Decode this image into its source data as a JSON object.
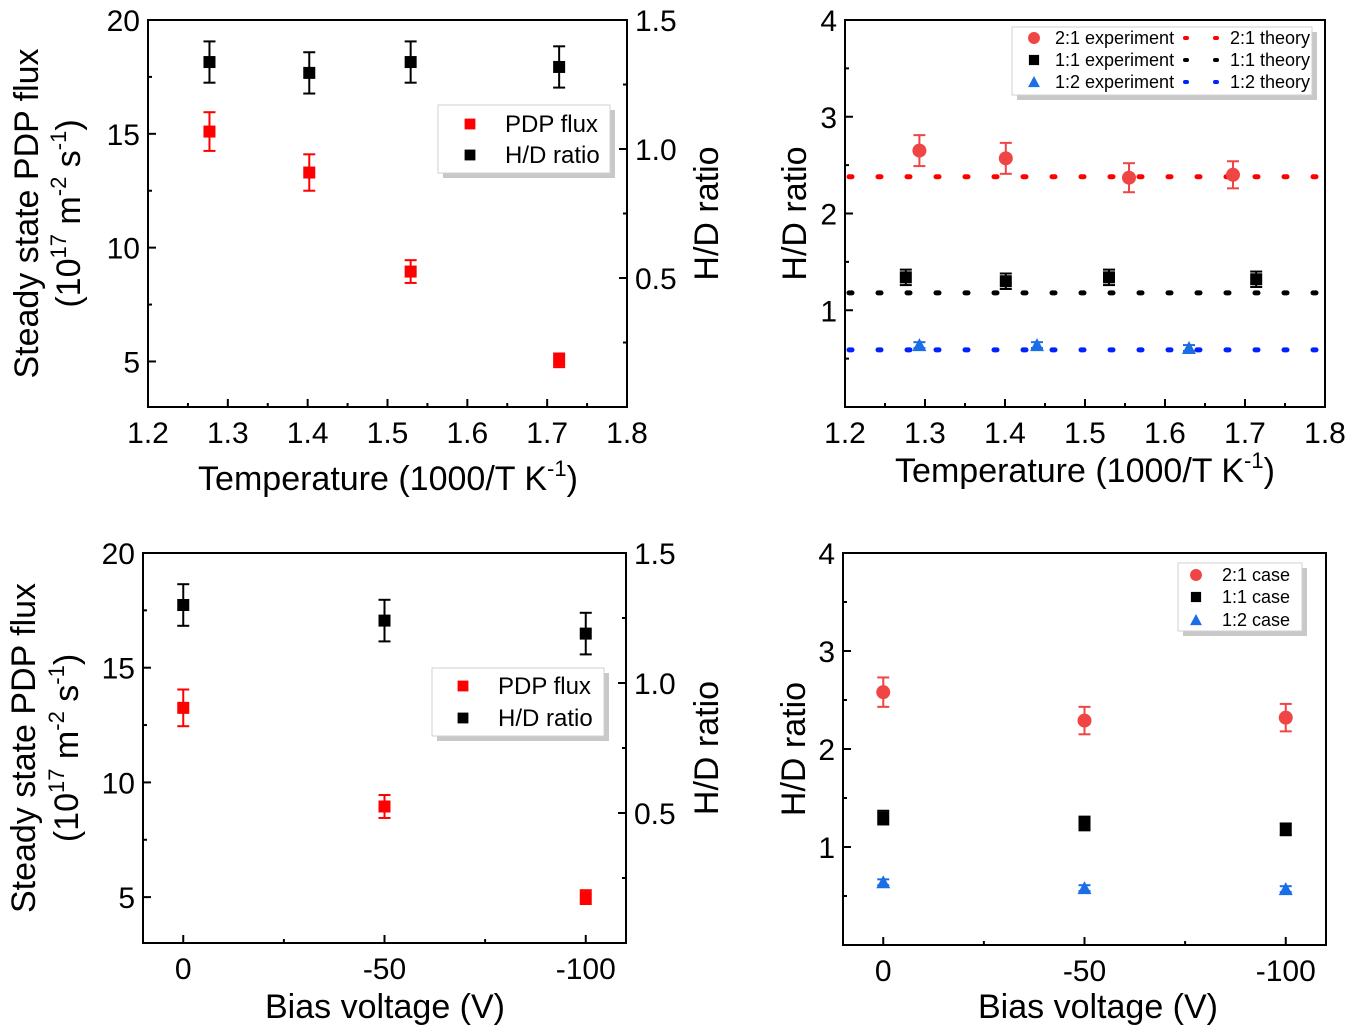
{
  "colors": {
    "red_square": "#ff0000",
    "red_circle": "#f04545",
    "black": "#000000",
    "blue_triangle": "#1a6ee6",
    "red_theory": "#ff0000",
    "black_theory": "#000000",
    "blue_theory": "#0022ff"
  },
  "chart_data": [
    {
      "id": "a",
      "type": "scatter",
      "xlabel": {
        "text": "Temperature (1000/T K",
        "sup": "-1",
        "end": ")"
      },
      "ylabel": {
        "line1": "Steady state PDP flux",
        "line2": [
          "(10",
          "17",
          " m",
          "-2",
          " s",
          "-1",
          ")"
        ]
      },
      "y2label": "H/D ratio",
      "xlim": [
        1.2,
        1.8
      ],
      "ylim": [
        3,
        20
      ],
      "y2lim": [
        0,
        1.5
      ],
      "xticks": [
        1.2,
        1.3,
        1.4,
        1.5,
        1.6,
        1.7,
        1.8
      ],
      "xtick_labels": [
        "1.2",
        "1.3",
        "1.4",
        "1.5",
        "1.6",
        "1.7",
        "1.8"
      ],
      "yticks": [
        5,
        10,
        15,
        20
      ],
      "ytick_labels": [
        "5",
        "10",
        "15",
        "20"
      ],
      "y2ticks": [
        0.5,
        1.0,
        1.5
      ],
      "y2tick_labels": [
        "0.5",
        "1.0",
        "1.5"
      ],
      "legend": {
        "placement": "upper-right",
        "entries": [
          "PDP flux",
          "H/D ratio"
        ]
      },
      "series": [
        {
          "name": "PDP flux",
          "axis": "left",
          "marker": "square",
          "color": "#ff0000",
          "x": [
            1.277,
            1.402,
            1.529,
            1.715
          ],
          "y": [
            15.1,
            13.3,
            8.95,
            5.05
          ],
          "err": [
            0.85,
            0.8,
            0.5,
            0.3
          ]
        },
        {
          "name": "H/D ratio",
          "axis": "right",
          "marker": "square",
          "color": "#000000",
          "x": [
            1.277,
            1.402,
            1.529,
            1.715
          ],
          "y": [
            1.337,
            1.295,
            1.337,
            1.318
          ],
          "err": [
            0.08,
            0.08,
            0.08,
            0.08
          ]
        }
      ]
    },
    {
      "id": "b",
      "type": "scatter",
      "xlabel": {
        "text": "Temperature (1000/T K",
        "sup": "-1",
        "end": ")"
      },
      "ylabel": {
        "line1": "H/D ratio"
      },
      "xlim": [
        1.2,
        1.8
      ],
      "ylim": [
        0,
        4
      ],
      "xticks": [
        1.2,
        1.3,
        1.4,
        1.5,
        1.6,
        1.7,
        1.8
      ],
      "xtick_labels": [
        "1.2",
        "1.3",
        "1.4",
        "1.5",
        "1.6",
        "1.7",
        "1.8"
      ],
      "yticks": [
        1,
        2,
        3,
        4
      ],
      "ytick_labels": [
        "1",
        "2",
        "3",
        "4"
      ],
      "legend": {
        "placement": "top-right",
        "entries": [
          "2:1 experiment",
          "1:1 experiment",
          "1:2 experiment"
        ],
        "theory_entries": [
          "2:1 theory",
          "1:1 theory",
          "1:2 theory"
        ]
      },
      "series": [
        {
          "name": "2:1 experiment",
          "marker": "circle",
          "color": "#f04545",
          "x": [
            1.293,
            1.401,
            1.555,
            1.685
          ],
          "y": [
            2.65,
            2.57,
            2.37,
            2.4
          ],
          "err": [
            0.16,
            0.16,
            0.15,
            0.14
          ]
        },
        {
          "name": "1:1 experiment",
          "marker": "square",
          "color": "#000000",
          "x": [
            1.276,
            1.401,
            1.53,
            1.714
          ],
          "y": [
            1.34,
            1.3,
            1.34,
            1.32
          ],
          "err": [
            0.08,
            0.08,
            0.08,
            0.08
          ]
        },
        {
          "name": "1:2 experiment",
          "marker": "triangle",
          "color": "#1a6ee6",
          "x": [
            1.293,
            1.44,
            1.63
          ],
          "y": [
            0.64,
            0.64,
            0.61
          ],
          "err": [
            0.03,
            0.03,
            0.03
          ]
        }
      ],
      "theory": [
        {
          "name": "2:1 theory",
          "y": 2.38,
          "color": "#ff0000"
        },
        {
          "name": "1:1 theory",
          "y": 1.18,
          "color": "#000000"
        },
        {
          "name": "1:2 theory",
          "y": 0.59,
          "color": "#0022ff"
        }
      ]
    },
    {
      "id": "c",
      "type": "scatter",
      "xlabel": {
        "text": "Bias voltage (V)"
      },
      "ylabel": {
        "line1": "Steady state PDP flux",
        "line2": [
          "(10",
          "17",
          " m",
          "-2",
          " s",
          "-1",
          ")"
        ]
      },
      "y2label": "H/D ratio",
      "xlim": [
        10,
        -110
      ],
      "ylim": [
        3,
        20
      ],
      "y2lim": [
        0,
        1.5
      ],
      "xticks": [
        0,
        -50,
        -100
      ],
      "xtick_labels": [
        "0",
        "-50",
        "-100"
      ],
      "yticks": [
        5,
        10,
        15,
        20
      ],
      "ytick_labels": [
        "5",
        "10",
        "15",
        "20"
      ],
      "y2ticks": [
        0.5,
        1.0,
        1.5
      ],
      "y2tick_labels": [
        "0.5",
        "1.0",
        "1.5"
      ],
      "legend": {
        "placement": "center-right",
        "entries": [
          "PDP flux",
          "H/D ratio"
        ]
      },
      "series": [
        {
          "name": "PDP flux",
          "axis": "left",
          "marker": "square",
          "color": "#ff0000",
          "x": [
            0,
            -50,
            -100
          ],
          "y": [
            13.25,
            8.95,
            5.0
          ],
          "err": [
            0.8,
            0.5,
            0.3
          ]
        },
        {
          "name": "H/D ratio",
          "axis": "right",
          "marker": "square",
          "color": "#000000",
          "x": [
            0,
            -50,
            -100
          ],
          "y": [
            1.3,
            1.24,
            1.19
          ],
          "err": [
            0.08,
            0.08,
            0.08
          ]
        }
      ]
    },
    {
      "id": "d",
      "type": "scatter",
      "xlabel": {
        "text": "Bias voltage (V)"
      },
      "ylabel": {
        "line1": "H/D ratio"
      },
      "xlim": [
        10,
        -110
      ],
      "ylim": [
        0,
        4
      ],
      "xticks": [
        0,
        -50,
        -100
      ],
      "xtick_labels": [
        "0",
        "-50",
        "-100"
      ],
      "yticks": [
        1,
        2,
        3,
        4
      ],
      "ytick_labels": [
        "1",
        "2",
        "3",
        "4"
      ],
      "legend": {
        "placement": "top-right",
        "entries": [
          "2:1 case",
          "1:1 case",
          "1:2 case"
        ]
      },
      "series": [
        {
          "name": "2:1 case",
          "marker": "circle",
          "color": "#f04545",
          "x": [
            0,
            -50,
            -100
          ],
          "y": [
            2.58,
            2.29,
            2.32
          ],
          "err": [
            0.15,
            0.14,
            0.14
          ]
        },
        {
          "name": "1:1 case",
          "marker": "square",
          "color": "#000000",
          "x": [
            0,
            -50,
            -100
          ],
          "y": [
            1.3,
            1.24,
            1.18
          ],
          "err": [
            0.07,
            0.07,
            0.06
          ]
        },
        {
          "name": "1:2 case",
          "marker": "triangle",
          "color": "#1a6ee6",
          "x": [
            0,
            -50,
            -100
          ],
          "y": [
            0.64,
            0.58,
            0.57
          ],
          "err": [
            0.03,
            0.03,
            0.03
          ]
        }
      ]
    }
  ]
}
